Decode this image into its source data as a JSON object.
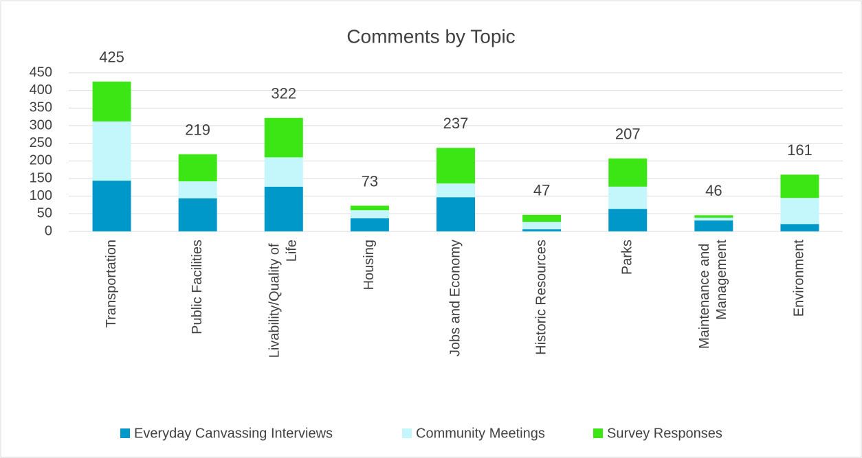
{
  "chart_data": {
    "type": "stacked_bar",
    "title": "Comments by Topic",
    "categories": [
      "Transportation",
      "Public Facilities",
      "Livability/Quality of Life",
      "Housing",
      "Jobs and Economy",
      "Historic Resources",
      "Parks",
      "Maintenance and Management",
      "Environment"
    ],
    "series": [
      {
        "name": "Everyday Canvassing Interviews",
        "color": "#0098c9",
        "values": [
          144,
          94,
          127,
          37,
          97,
          6,
          64,
          31,
          21
        ]
      },
      {
        "name": "Community Meetings",
        "color": "#c4f7fb",
        "values": [
          168,
          48,
          83,
          23,
          39,
          21,
          63,
          8,
          74
        ]
      },
      {
        "name": "Survey Responses",
        "color": "#3ce614",
        "values": [
          113,
          77,
          112,
          13,
          101,
          20,
          80,
          7,
          66
        ]
      }
    ],
    "totals": [
      425,
      219,
      322,
      73,
      237,
      47,
      207,
      46,
      161
    ],
    "ylim": [
      0,
      450
    ],
    "yticks": [
      0,
      50,
      100,
      150,
      200,
      250,
      300,
      350,
      400,
      450
    ],
    "grid": true,
    "legend": "bottom"
  }
}
